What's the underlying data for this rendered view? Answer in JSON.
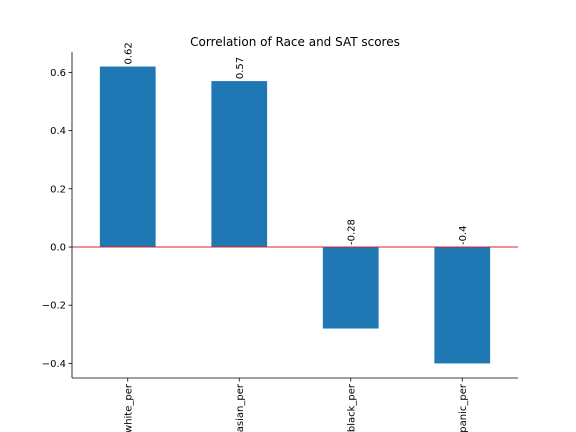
{
  "chart_data": {
    "type": "bar",
    "title": "Correlation of Race and SAT scores",
    "categories": [
      "white_per",
      "asian_per",
      "black_per",
      "hispanic_per"
    ],
    "values": [
      0.62,
      0.57,
      -0.28,
      -0.4
    ],
    "value_labels": [
      "0.62",
      "0.57",
      "-0.28",
      "-0.4"
    ],
    "ylim": [
      -0.45,
      0.67
    ],
    "yticks": [
      -0.4,
      -0.2,
      0.0,
      0.2,
      0.4,
      0.6
    ],
    "ytick_labels": [
      "−0.4",
      "−0.2",
      "0.0",
      "0.2",
      "0.4",
      "0.6"
    ],
    "xlabel": "",
    "ylabel": "",
    "grid": false,
    "zero_line": true,
    "colors": {
      "bar": "#1f77b4",
      "zero_line": "#d62728",
      "axis": "#000000"
    }
  }
}
